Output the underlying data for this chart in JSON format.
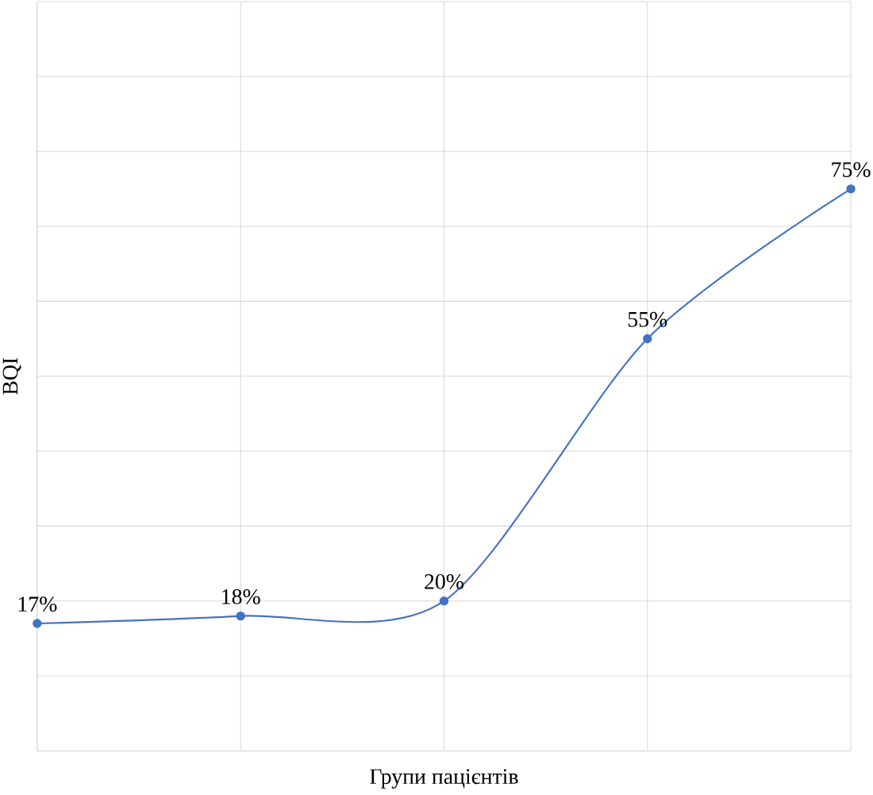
{
  "chart_data": {
    "type": "line",
    "xlabel": "Групи пацієнтів",
    "ylabel": "BQI",
    "categories": [
      null,
      null,
      null,
      null,
      null
    ],
    "series": [
      {
        "color": "#4472c4",
        "values": [
          17,
          18,
          20,
          55,
          75
        ],
        "value_labels": [
          "17%",
          "18%",
          "20%",
          "55%",
          "75%"
        ]
      }
    ],
    "ylim": [
      0,
      100
    ],
    "yticks": [
      {
        "value": 0,
        "label": null
      },
      {
        "value": 10,
        "label": null
      },
      {
        "value": 20,
        "label": null
      },
      {
        "value": 30,
        "label": null
      },
      {
        "value": 40,
        "label": null
      },
      {
        "value": 50,
        "label": null
      },
      {
        "value": 60,
        "label": null
      },
      {
        "value": 70,
        "label": null
      },
      {
        "value": 80,
        "label": null
      },
      {
        "value": 90,
        "label": null
      },
      {
        "value": 100,
        "label": null
      }
    ],
    "grid": true,
    "marker": "circle",
    "line_style": "solid"
  }
}
